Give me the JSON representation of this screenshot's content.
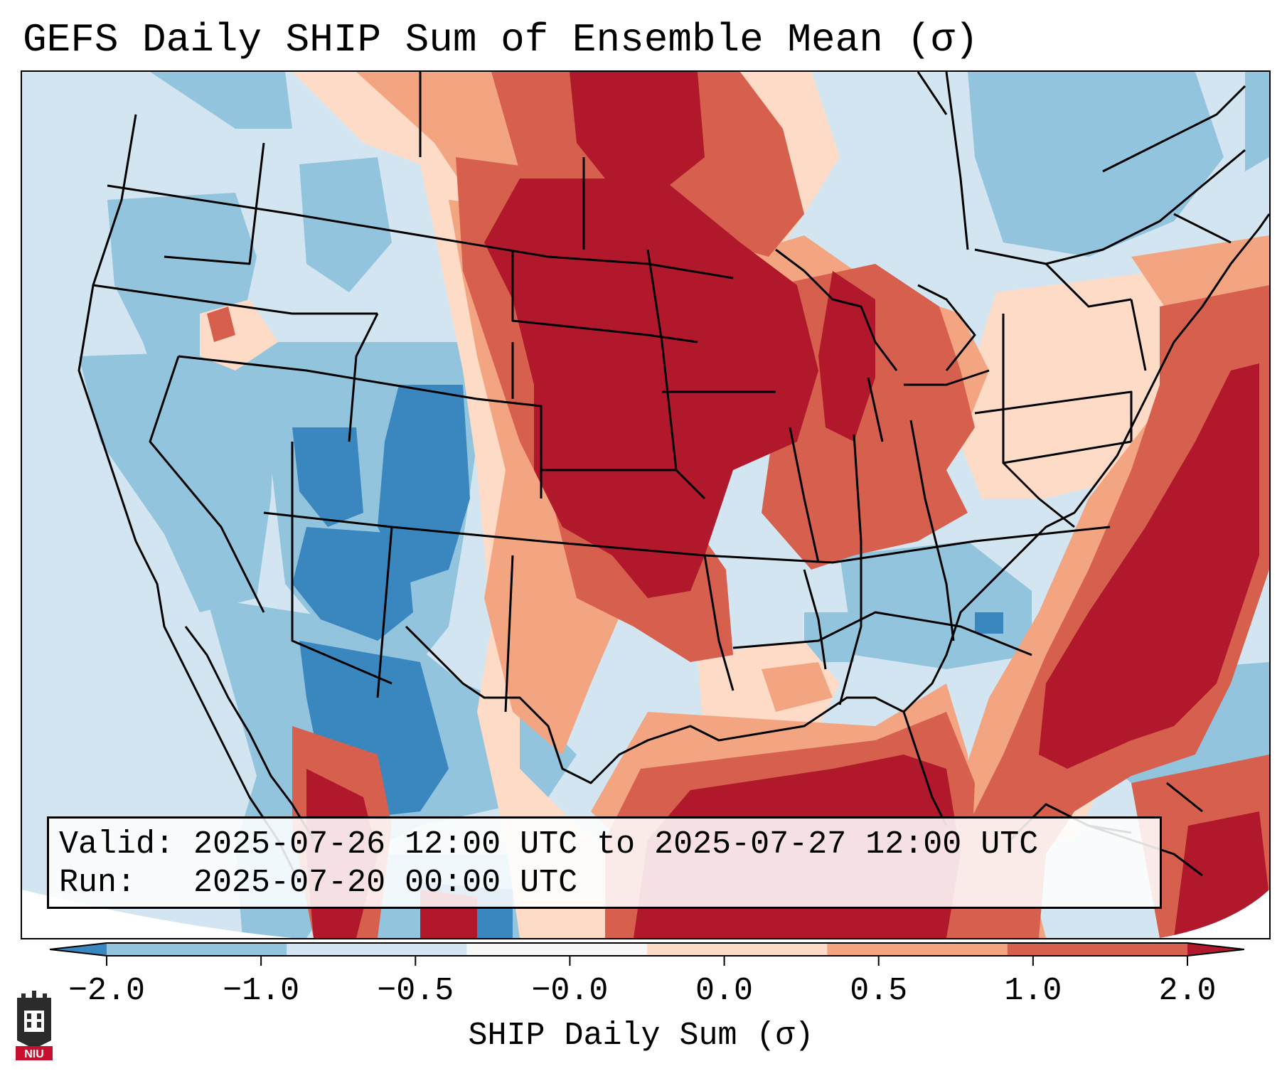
{
  "title": "GEFS Daily SHIP Sum of Ensemble Mean (σ)",
  "info": {
    "valid_label": "Valid:",
    "valid_value": "2025-07-26 12:00 UTC to 2025-07-27 12:00 UTC",
    "run_label": "Run:",
    "run_value": "2025-07-20 00:00 UTC"
  },
  "colorbar": {
    "label": "SHIP Daily Sum (σ)",
    "ticks": [
      "−2.0",
      "−1.0",
      "−0.5",
      "−0.0",
      "0.0",
      "0.5",
      "1.0",
      "2.0"
    ],
    "colors": [
      "#3a87c0",
      "#92c4de",
      "#d2e5f0",
      "#f7f7f7",
      "#fddbc7",
      "#f3a582",
      "#d6604d",
      "#b2182b"
    ]
  },
  "logo": {
    "text": "NIU"
  }
}
